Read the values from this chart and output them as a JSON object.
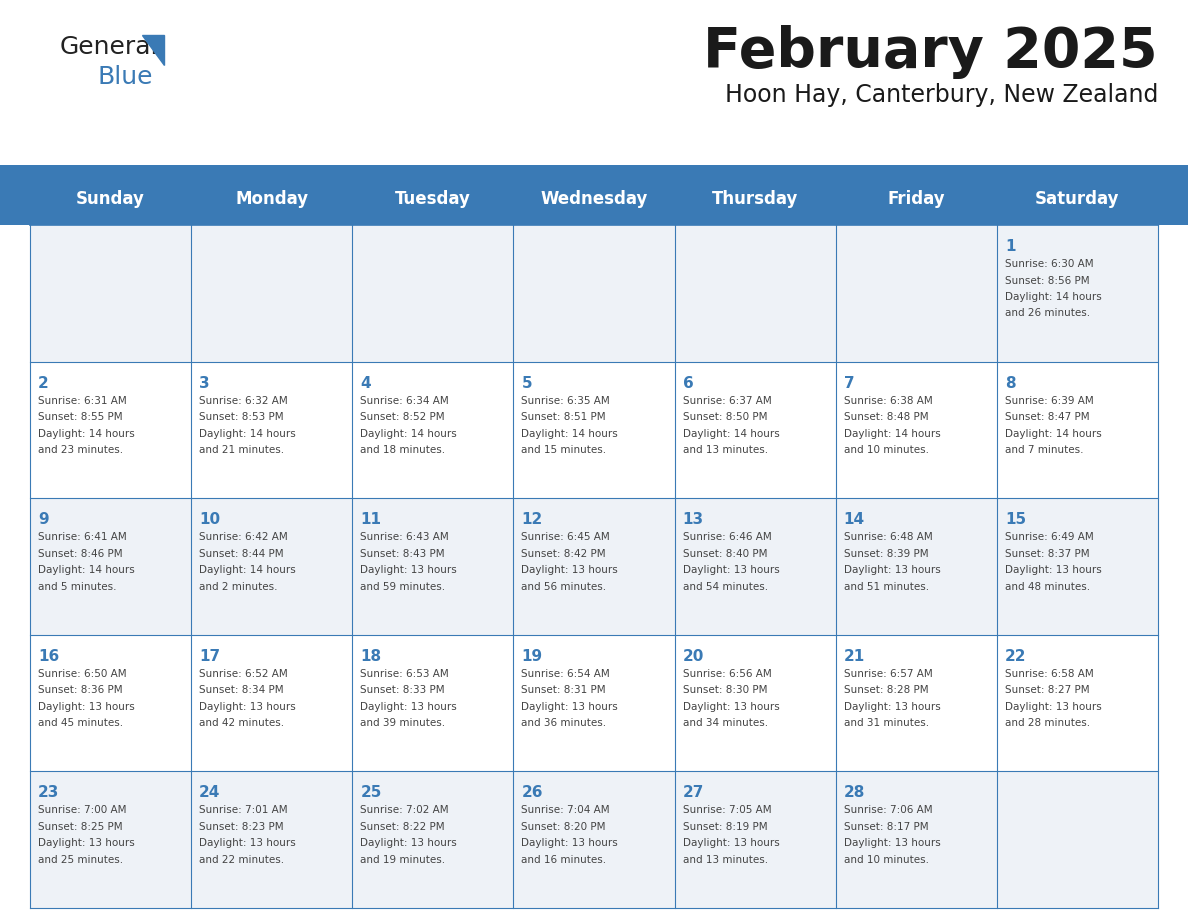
{
  "title": "February 2025",
  "subtitle": "Hoon Hay, Canterbury, New Zealand",
  "days_of_week": [
    "Sunday",
    "Monday",
    "Tuesday",
    "Wednesday",
    "Thursday",
    "Friday",
    "Saturday"
  ],
  "header_bg": "#3a7ab5",
  "header_text": "#ffffff",
  "cell_bg_light": "#eef2f7",
  "cell_bg_white": "#ffffff",
  "border_color": "#3a7ab5",
  "day_number_color": "#3a7ab5",
  "text_color": "#444444",
  "calendar": [
    [
      null,
      null,
      null,
      null,
      null,
      null,
      1
    ],
    [
      2,
      3,
      4,
      5,
      6,
      7,
      8
    ],
    [
      9,
      10,
      11,
      12,
      13,
      14,
      15
    ],
    [
      16,
      17,
      18,
      19,
      20,
      21,
      22
    ],
    [
      23,
      24,
      25,
      26,
      27,
      28,
      null
    ]
  ],
  "sun_data": {
    "1": {
      "sunrise": "6:30 AM",
      "sunset": "8:56 PM",
      "daylight": "14 hours and 26 minutes."
    },
    "2": {
      "sunrise": "6:31 AM",
      "sunset": "8:55 PM",
      "daylight": "14 hours and 23 minutes."
    },
    "3": {
      "sunrise": "6:32 AM",
      "sunset": "8:53 PM",
      "daylight": "14 hours and 21 minutes."
    },
    "4": {
      "sunrise": "6:34 AM",
      "sunset": "8:52 PM",
      "daylight": "14 hours and 18 minutes."
    },
    "5": {
      "sunrise": "6:35 AM",
      "sunset": "8:51 PM",
      "daylight": "14 hours and 15 minutes."
    },
    "6": {
      "sunrise": "6:37 AM",
      "sunset": "8:50 PM",
      "daylight": "14 hours and 13 minutes."
    },
    "7": {
      "sunrise": "6:38 AM",
      "sunset": "8:48 PM",
      "daylight": "14 hours and 10 minutes."
    },
    "8": {
      "sunrise": "6:39 AM",
      "sunset": "8:47 PM",
      "daylight": "14 hours and 7 minutes."
    },
    "9": {
      "sunrise": "6:41 AM",
      "sunset": "8:46 PM",
      "daylight": "14 hours and 5 minutes."
    },
    "10": {
      "sunrise": "6:42 AM",
      "sunset": "8:44 PM",
      "daylight": "14 hours and 2 minutes."
    },
    "11": {
      "sunrise": "6:43 AM",
      "sunset": "8:43 PM",
      "daylight": "13 hours and 59 minutes."
    },
    "12": {
      "sunrise": "6:45 AM",
      "sunset": "8:42 PM",
      "daylight": "13 hours and 56 minutes."
    },
    "13": {
      "sunrise": "6:46 AM",
      "sunset": "8:40 PM",
      "daylight": "13 hours and 54 minutes."
    },
    "14": {
      "sunrise": "6:48 AM",
      "sunset": "8:39 PM",
      "daylight": "13 hours and 51 minutes."
    },
    "15": {
      "sunrise": "6:49 AM",
      "sunset": "8:37 PM",
      "daylight": "13 hours and 48 minutes."
    },
    "16": {
      "sunrise": "6:50 AM",
      "sunset": "8:36 PM",
      "daylight": "13 hours and 45 minutes."
    },
    "17": {
      "sunrise": "6:52 AM",
      "sunset": "8:34 PM",
      "daylight": "13 hours and 42 minutes."
    },
    "18": {
      "sunrise": "6:53 AM",
      "sunset": "8:33 PM",
      "daylight": "13 hours and 39 minutes."
    },
    "19": {
      "sunrise": "6:54 AM",
      "sunset": "8:31 PM",
      "daylight": "13 hours and 36 minutes."
    },
    "20": {
      "sunrise": "6:56 AM",
      "sunset": "8:30 PM",
      "daylight": "13 hours and 34 minutes."
    },
    "21": {
      "sunrise": "6:57 AM",
      "sunset": "8:28 PM",
      "daylight": "13 hours and 31 minutes."
    },
    "22": {
      "sunrise": "6:58 AM",
      "sunset": "8:27 PM",
      "daylight": "13 hours and 28 minutes."
    },
    "23": {
      "sunrise": "7:00 AM",
      "sunset": "8:25 PM",
      "daylight": "13 hours and 25 minutes."
    },
    "24": {
      "sunrise": "7:01 AM",
      "sunset": "8:23 PM",
      "daylight": "13 hours and 22 minutes."
    },
    "25": {
      "sunrise": "7:02 AM",
      "sunset": "8:22 PM",
      "daylight": "13 hours and 19 minutes."
    },
    "26": {
      "sunrise": "7:04 AM",
      "sunset": "8:20 PM",
      "daylight": "13 hours and 16 minutes."
    },
    "27": {
      "sunrise": "7:05 AM",
      "sunset": "8:19 PM",
      "daylight": "13 hours and 13 minutes."
    },
    "28": {
      "sunrise": "7:06 AM",
      "sunset": "8:17 PM",
      "daylight": "13 hours and 10 minutes."
    }
  },
  "fig_width": 11.88,
  "fig_height": 9.18,
  "dpi": 100
}
